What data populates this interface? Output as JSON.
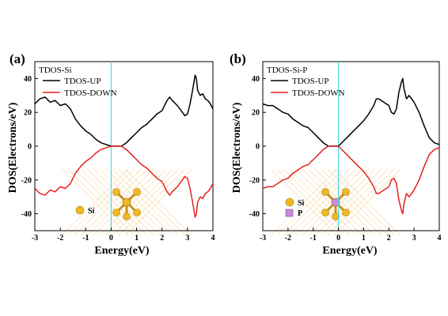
{
  "chart_data": [
    {
      "panel_label": "(a)",
      "type": "line",
      "title": "TDOS-Si",
      "xlabel": "Energy(eV)",
      "ylabel": "DOS(Electrons/eV)",
      "xlim": [
        -3,
        4
      ],
      "ylim": [
        -50,
        50
      ],
      "x_ticks": [
        -3,
        -2,
        -1,
        0,
        1,
        2,
        3,
        4
      ],
      "y_ticks": [
        -40,
        -20,
        0,
        20,
        40
      ],
      "fermi_level": 0,
      "legend_position": "top-left",
      "series": [
        {
          "name": "TDOS-UP",
          "color": "#000000",
          "x": [
            -3.0,
            -2.8,
            -2.6,
            -2.4,
            -2.2,
            -2.0,
            -1.8,
            -1.6,
            -1.4,
            -1.2,
            -1.0,
            -0.8,
            -0.6,
            -0.4,
            -0.2,
            0.0,
            0.2,
            0.4,
            0.6,
            0.8,
            1.0,
            1.2,
            1.4,
            1.6,
            1.8,
            2.0,
            2.1,
            2.2,
            2.3,
            2.4,
            2.6,
            2.8,
            2.9,
            3.0,
            3.1,
            3.2,
            3.3,
            3.35,
            3.4,
            3.5,
            3.6,
            3.7,
            3.8,
            3.9,
            4.0
          ],
          "y": [
            25,
            28,
            29,
            26,
            27,
            24,
            25,
            22,
            16,
            12,
            9,
            7,
            4,
            2,
            1,
            0,
            0,
            0,
            2,
            5,
            8,
            11,
            13,
            16,
            19,
            21,
            24,
            27,
            29,
            27,
            24,
            20,
            18,
            19,
            25,
            33,
            42,
            40,
            33,
            30,
            31,
            28,
            27,
            25,
            22
          ]
        },
        {
          "name": "TDOS-DOWN",
          "color": "#e8201c",
          "x": [
            -3.0,
            -2.8,
            -2.6,
            -2.4,
            -2.2,
            -2.0,
            -1.8,
            -1.6,
            -1.4,
            -1.2,
            -1.0,
            -0.8,
            -0.6,
            -0.4,
            -0.2,
            0.0,
            0.2,
            0.4,
            0.6,
            0.8,
            1.0,
            1.2,
            1.4,
            1.6,
            1.8,
            2.0,
            2.1,
            2.2,
            2.3,
            2.4,
            2.6,
            2.8,
            2.9,
            3.0,
            3.1,
            3.2,
            3.3,
            3.35,
            3.4,
            3.5,
            3.6,
            3.7,
            3.8,
            3.9,
            4.0
          ],
          "y": [
            -25,
            -28,
            -29,
            -26,
            -27,
            -24,
            -25,
            -22,
            -16,
            -12,
            -9,
            -7,
            -4,
            -2,
            -1,
            0,
            0,
            0,
            -2,
            -5,
            -8,
            -11,
            -13,
            -16,
            -19,
            -21,
            -24,
            -27,
            -29,
            -27,
            -24,
            -20,
            -18,
            -19,
            -25,
            -33,
            -42,
            -40,
            -33,
            -30,
            -31,
            -28,
            -27,
            -25,
            -22
          ]
        }
      ],
      "inset_atoms": [
        "Si"
      ]
    },
    {
      "panel_label": "(b)",
      "type": "line",
      "title": "TDOS-Si-P",
      "xlabel": "Energy(eV)",
      "ylabel": "DOS(Electrons/eV)",
      "xlim": [
        -3,
        4
      ],
      "ylim": [
        -50,
        50
      ],
      "x_ticks": [
        -3,
        -2,
        -1,
        0,
        1,
        2,
        3,
        4
      ],
      "y_ticks": [
        -40,
        -20,
        0,
        20,
        40
      ],
      "fermi_level": 0,
      "legend_position": "top-left",
      "series": [
        {
          "name": "TDOS-UP",
          "color": "#000000",
          "x": [
            -3.0,
            -2.8,
            -2.6,
            -2.4,
            -2.2,
            -2.0,
            -1.8,
            -1.6,
            -1.4,
            -1.2,
            -1.0,
            -0.8,
            -0.6,
            -0.4,
            -0.2,
            0.0,
            0.2,
            0.4,
            0.6,
            0.8,
            1.0,
            1.2,
            1.4,
            1.5,
            1.6,
            1.8,
            2.0,
            2.1,
            2.2,
            2.3,
            2.4,
            2.5,
            2.55,
            2.6,
            2.7,
            2.8,
            2.9,
            3.0,
            3.2,
            3.4,
            3.6,
            3.8,
            4.0
          ],
          "y": [
            25,
            24,
            24,
            22,
            20,
            19,
            16,
            14,
            12,
            11,
            8,
            5,
            2,
            0,
            0,
            0,
            3,
            6,
            9,
            12,
            15,
            19,
            24,
            28,
            28,
            26,
            24,
            20,
            19,
            22,
            32,
            38,
            40,
            34,
            28,
            30,
            28,
            26,
            20,
            12,
            5,
            2,
            1
          ]
        },
        {
          "name": "TDOS-DOWN",
          "color": "#e8201c",
          "x": [
            -3.0,
            -2.8,
            -2.6,
            -2.4,
            -2.2,
            -2.0,
            -1.8,
            -1.6,
            -1.4,
            -1.2,
            -1.0,
            -0.8,
            -0.6,
            -0.4,
            -0.2,
            0.0,
            0.2,
            0.4,
            0.6,
            0.8,
            1.0,
            1.2,
            1.4,
            1.5,
            1.6,
            1.8,
            2.0,
            2.1,
            2.2,
            2.3,
            2.4,
            2.5,
            2.55,
            2.6,
            2.7,
            2.8,
            2.9,
            3.0,
            3.2,
            3.4,
            3.6,
            3.8,
            4.0
          ],
          "y": [
            -25,
            -24,
            -24,
            -22,
            -20,
            -19,
            -16,
            -14,
            -12,
            -11,
            -8,
            -5,
            -2,
            0,
            0,
            0,
            -3,
            -6,
            -9,
            -12,
            -15,
            -19,
            -24,
            -28,
            -28,
            -26,
            -24,
            -20,
            -19,
            -22,
            -32,
            -38,
            -40,
            -34,
            -28,
            -30,
            -28,
            -26,
            -20,
            -12,
            -5,
            -2,
            -1
          ]
        }
      ],
      "inset_atoms": [
        "Si",
        "P"
      ]
    }
  ],
  "colors": {
    "fermi_line": "#4fd8e8",
    "si_atom": "#f2b822",
    "p_atom": "#c98ae0",
    "lattice": "#f5c97a"
  }
}
